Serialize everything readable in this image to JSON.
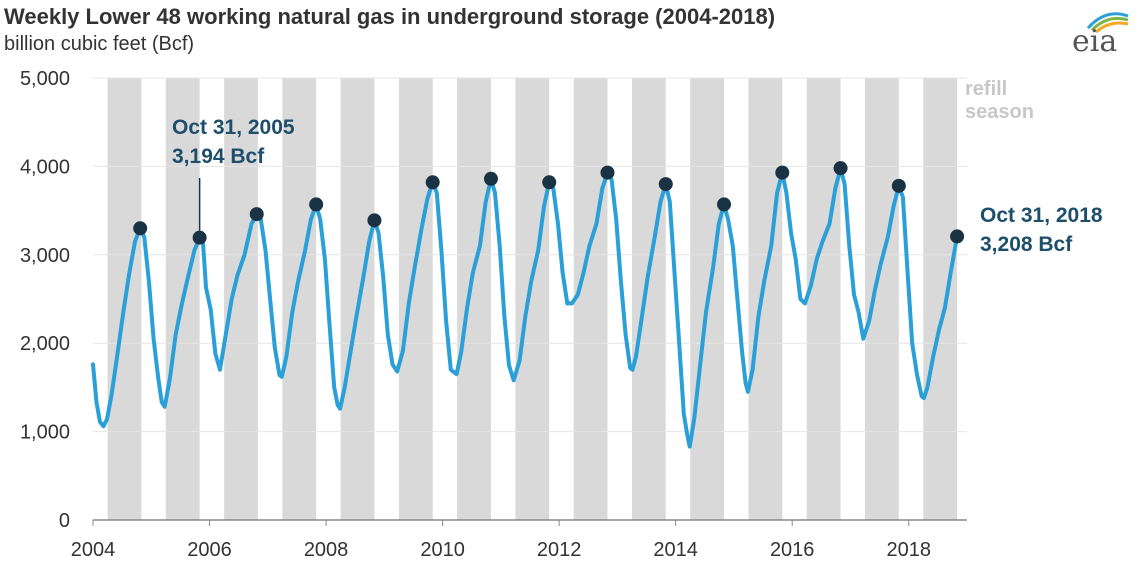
{
  "header": {
    "title": "Weekly Lower 48 working natural gas in underground storage (2004-2018)",
    "subtitle": "billion cubic feet (Bcf)",
    "logo_text": "eia"
  },
  "colors": {
    "line": "#2a9fd8",
    "marker": "#1a3344",
    "shade": "#d9d9d9",
    "grid": "#e6e6e6",
    "annotation": "#1d4e6b"
  },
  "chart_data": {
    "type": "line",
    "title": "Weekly Lower 48 working natural gas in underground storage (2004-2018)",
    "ylabel": "billion cubic feet (Bcf)",
    "xlim": [
      2004.0,
      2019.0
    ],
    "ylim": [
      0,
      5000
    ],
    "y_ticks": [
      {
        "value": 0,
        "label": "0"
      },
      {
        "value": 1000,
        "label": "1,000"
      },
      {
        "value": 2000,
        "label": "2,000"
      },
      {
        "value": 3000,
        "label": "3,000"
      },
      {
        "value": 4000,
        "label": "4,000"
      },
      {
        "value": 5000,
        "label": "5,000"
      }
    ],
    "x_ticks": [
      {
        "value": 2004,
        "label": "2004"
      },
      {
        "value": 2006,
        "label": "2006"
      },
      {
        "value": 2008,
        "label": "2008"
      },
      {
        "value": 2010,
        "label": "2010"
      },
      {
        "value": 2012,
        "label": "2012"
      },
      {
        "value": 2014,
        "label": "2014"
      },
      {
        "value": 2016,
        "label": "2016"
      },
      {
        "value": 2018,
        "label": "2018"
      }
    ],
    "shaded_label": [
      "refill",
      "season"
    ],
    "refill_seasons": [
      [
        2004.25,
        2004.83
      ],
      [
        2005.25,
        2005.83
      ],
      [
        2006.25,
        2006.83
      ],
      [
        2007.25,
        2007.83
      ],
      [
        2008.25,
        2008.83
      ],
      [
        2009.25,
        2009.83
      ],
      [
        2010.25,
        2010.83
      ],
      [
        2011.25,
        2011.83
      ],
      [
        2012.25,
        2012.83
      ],
      [
        2013.25,
        2013.83
      ],
      [
        2014.25,
        2014.83
      ],
      [
        2015.25,
        2015.83
      ],
      [
        2016.25,
        2016.83
      ],
      [
        2017.25,
        2017.83
      ],
      [
        2018.25,
        2018.83
      ]
    ],
    "series": [
      {
        "points": [
          [
            2004.0,
            1760
          ],
          [
            2004.06,
            1330
          ],
          [
            2004.12,
            1110
          ],
          [
            2004.18,
            1060
          ],
          [
            2004.24,
            1140
          ],
          [
            2004.32,
            1420
          ],
          [
            2004.42,
            1880
          ],
          [
            2004.52,
            2350
          ],
          [
            2004.62,
            2780
          ],
          [
            2004.72,
            3150
          ],
          [
            2004.81,
            3300
          ],
          [
            2004.88,
            3200
          ],
          [
            2004.96,
            2700
          ],
          [
            2005.04,
            2050
          ],
          [
            2005.12,
            1600
          ],
          [
            2005.18,
            1330
          ],
          [
            2005.23,
            1280
          ],
          [
            2005.32,
            1600
          ],
          [
            2005.42,
            2100
          ],
          [
            2005.52,
            2430
          ],
          [
            2005.62,
            2720
          ],
          [
            2005.74,
            3050
          ],
          [
            2005.83,
            3194
          ],
          [
            2005.89,
            3120
          ],
          [
            2005.94,
            2630
          ],
          [
            2006.02,
            2380
          ],
          [
            2006.1,
            1880
          ],
          [
            2006.18,
            1700
          ],
          [
            2006.28,
            2100
          ],
          [
            2006.38,
            2500
          ],
          [
            2006.48,
            2770
          ],
          [
            2006.6,
            3000
          ],
          [
            2006.72,
            3350
          ],
          [
            2006.81,
            3460
          ],
          [
            2006.88,
            3400
          ],
          [
            2006.96,
            3050
          ],
          [
            2007.04,
            2500
          ],
          [
            2007.12,
            1950
          ],
          [
            2007.2,
            1640
          ],
          [
            2007.24,
            1620
          ],
          [
            2007.32,
            1850
          ],
          [
            2007.42,
            2350
          ],
          [
            2007.52,
            2700
          ],
          [
            2007.64,
            3050
          ],
          [
            2007.74,
            3400
          ],
          [
            2007.83,
            3570
          ],
          [
            2007.9,
            3400
          ],
          [
            2007.98,
            2950
          ],
          [
            2008.06,
            2200
          ],
          [
            2008.14,
            1500
          ],
          [
            2008.2,
            1300
          ],
          [
            2008.24,
            1260
          ],
          [
            2008.32,
            1500
          ],
          [
            2008.42,
            1900
          ],
          [
            2008.52,
            2300
          ],
          [
            2008.64,
            2750
          ],
          [
            2008.74,
            3150
          ],
          [
            2008.83,
            3390
          ],
          [
            2008.9,
            3250
          ],
          [
            2008.98,
            2750
          ],
          [
            2009.06,
            2100
          ],
          [
            2009.14,
            1760
          ],
          [
            2009.22,
            1680
          ],
          [
            2009.32,
            1920
          ],
          [
            2009.42,
            2450
          ],
          [
            2009.52,
            2850
          ],
          [
            2009.64,
            3300
          ],
          [
            2009.74,
            3640
          ],
          [
            2009.83,
            3820
          ],
          [
            2009.9,
            3700
          ],
          [
            2009.98,
            3050
          ],
          [
            2010.06,
            2250
          ],
          [
            2010.14,
            1700
          ],
          [
            2010.24,
            1650
          ],
          [
            2010.32,
            1900
          ],
          [
            2010.42,
            2400
          ],
          [
            2010.52,
            2800
          ],
          [
            2010.64,
            3100
          ],
          [
            2010.74,
            3600
          ],
          [
            2010.83,
            3860
          ],
          [
            2010.9,
            3700
          ],
          [
            2010.98,
            3100
          ],
          [
            2011.06,
            2300
          ],
          [
            2011.14,
            1750
          ],
          [
            2011.22,
            1580
          ],
          [
            2011.32,
            1800
          ],
          [
            2011.42,
            2300
          ],
          [
            2011.52,
            2700
          ],
          [
            2011.64,
            3050
          ],
          [
            2011.74,
            3550
          ],
          [
            2011.83,
            3820
          ],
          [
            2011.9,
            3750
          ],
          [
            2011.98,
            3350
          ],
          [
            2012.06,
            2800
          ],
          [
            2012.14,
            2450
          ],
          [
            2012.22,
            2450
          ],
          [
            2012.32,
            2550
          ],
          [
            2012.42,
            2800
          ],
          [
            2012.52,
            3100
          ],
          [
            2012.64,
            3350
          ],
          [
            2012.74,
            3750
          ],
          [
            2012.83,
            3930
          ],
          [
            2012.9,
            3850
          ],
          [
            2012.98,
            3400
          ],
          [
            2013.06,
            2700
          ],
          [
            2013.14,
            2100
          ],
          [
            2013.22,
            1720
          ],
          [
            2013.26,
            1700
          ],
          [
            2013.32,
            1850
          ],
          [
            2013.42,
            2300
          ],
          [
            2013.52,
            2750
          ],
          [
            2013.64,
            3200
          ],
          [
            2013.74,
            3600
          ],
          [
            2013.83,
            3800
          ],
          [
            2013.9,
            3600
          ],
          [
            2013.98,
            2800
          ],
          [
            2014.06,
            2000
          ],
          [
            2014.14,
            1200
          ],
          [
            2014.2,
            960
          ],
          [
            2014.24,
            830
          ],
          [
            2014.32,
            1150
          ],
          [
            2014.42,
            1750
          ],
          [
            2014.52,
            2350
          ],
          [
            2014.64,
            2850
          ],
          [
            2014.74,
            3350
          ],
          [
            2014.83,
            3570
          ],
          [
            2014.9,
            3400
          ],
          [
            2014.98,
            3100
          ],
          [
            2015.06,
            2500
          ],
          [
            2015.14,
            1900
          ],
          [
            2015.2,
            1550
          ],
          [
            2015.24,
            1450
          ],
          [
            2015.32,
            1700
          ],
          [
            2015.42,
            2300
          ],
          [
            2015.52,
            2700
          ],
          [
            2015.64,
            3100
          ],
          [
            2015.74,
            3700
          ],
          [
            2015.83,
            3930
          ],
          [
            2015.9,
            3700
          ],
          [
            2015.98,
            3250
          ],
          [
            2016.06,
            2950
          ],
          [
            2016.14,
            2500
          ],
          [
            2016.22,
            2450
          ],
          [
            2016.32,
            2650
          ],
          [
            2016.42,
            2950
          ],
          [
            2016.52,
            3150
          ],
          [
            2016.64,
            3350
          ],
          [
            2016.74,
            3750
          ],
          [
            2016.83,
            3980
          ],
          [
            2016.9,
            3800
          ],
          [
            2016.98,
            3100
          ],
          [
            2017.06,
            2550
          ],
          [
            2017.14,
            2350
          ],
          [
            2017.22,
            2050
          ],
          [
            2017.32,
            2250
          ],
          [
            2017.42,
            2600
          ],
          [
            2017.52,
            2900
          ],
          [
            2017.64,
            3200
          ],
          [
            2017.74,
            3550
          ],
          [
            2017.83,
            3780
          ],
          [
            2017.9,
            3650
          ],
          [
            2017.98,
            2800
          ],
          [
            2018.06,
            2000
          ],
          [
            2018.14,
            1650
          ],
          [
            2018.22,
            1400
          ],
          [
            2018.26,
            1380
          ],
          [
            2018.32,
            1500
          ],
          [
            2018.42,
            1850
          ],
          [
            2018.52,
            2150
          ],
          [
            2018.62,
            2400
          ],
          [
            2018.72,
            2800
          ],
          [
            2018.83,
            3208
          ]
        ]
      }
    ],
    "peaks": [
      [
        2004.81,
        3300
      ],
      [
        2005.83,
        3194
      ],
      [
        2006.81,
        3460
      ],
      [
        2007.83,
        3570
      ],
      [
        2008.83,
        3390
      ],
      [
        2009.83,
        3820
      ],
      [
        2010.83,
        3860
      ],
      [
        2011.83,
        3820
      ],
      [
        2012.83,
        3930
      ],
      [
        2013.83,
        3800
      ],
      [
        2014.83,
        3570
      ],
      [
        2015.83,
        3930
      ],
      [
        2016.83,
        3980
      ],
      [
        2017.83,
        3780
      ],
      [
        2018.83,
        3208
      ]
    ],
    "annotations": [
      {
        "lines": [
          "Oct 31, 2005",
          "3,194 Bcf"
        ],
        "x": 2005.83,
        "y": 3194
      },
      {
        "lines": [
          "Oct 31, 2018",
          "3,208 Bcf"
        ],
        "x": 2018.83,
        "y": 3208
      }
    ]
  }
}
